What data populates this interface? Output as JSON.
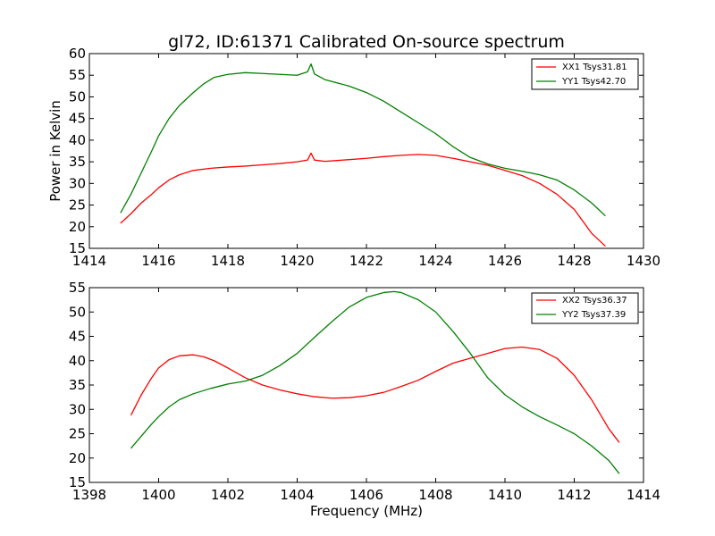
{
  "chart_data": [
    {
      "type": "line",
      "title": "gl72, ID:61371 Calibrated On-source spectrum",
      "xlabel": "",
      "ylabel": "Power in Kelvin",
      "xlim": [
        1414,
        1430
      ],
      "ylim": [
        15,
        60
      ],
      "xticks": [
        "1414",
        "1416",
        "1418",
        "1420",
        "1422",
        "1424",
        "1426",
        "1428",
        "1430"
      ],
      "yticks": [
        "15",
        "20",
        "25",
        "30",
        "35",
        "40",
        "45",
        "50",
        "55",
        "60"
      ],
      "grid": false,
      "legend_position": "top-right",
      "series": [
        {
          "name": "XX1 Tsys31.81",
          "color": "#ff0000",
          "x": [
            1414.9,
            1415.2,
            1415.5,
            1415.8,
            1416.0,
            1416.3,
            1416.6,
            1417.0,
            1417.5,
            1418.0,
            1418.5,
            1419.0,
            1419.5,
            1420.0,
            1420.3,
            1420.4,
            1420.5,
            1420.8,
            1421.5,
            1422.0,
            1422.5,
            1423.0,
            1423.5,
            1424.0,
            1424.5,
            1425.0,
            1425.5,
            1426.0,
            1426.5,
            1427.0,
            1427.5,
            1428.0,
            1428.5,
            1428.9
          ],
          "y": [
            20.8,
            23.0,
            25.5,
            27.5,
            29.0,
            30.8,
            32.0,
            33.0,
            33.5,
            33.8,
            34.0,
            34.3,
            34.6,
            35.0,
            35.4,
            37.0,
            35.4,
            35.1,
            35.5,
            35.8,
            36.2,
            36.5,
            36.7,
            36.5,
            35.8,
            35.0,
            34.2,
            33.0,
            31.8,
            30.0,
            27.5,
            24.0,
            18.5,
            15.5
          ]
        },
        {
          "name": "YY1 Tsys42.70",
          "color": "#008000",
          "x": [
            1414.9,
            1415.2,
            1415.5,
            1415.8,
            1416.0,
            1416.3,
            1416.6,
            1417.0,
            1417.3,
            1417.6,
            1418.0,
            1418.5,
            1419.0,
            1419.5,
            1420.0,
            1420.3,
            1420.4,
            1420.5,
            1420.8,
            1421.5,
            1422.0,
            1422.5,
            1423.0,
            1423.5,
            1424.0,
            1424.5,
            1425.0,
            1425.5,
            1426.0,
            1426.5,
            1427.0,
            1427.5,
            1428.0,
            1428.5,
            1428.9
          ],
          "y": [
            23.2,
            27.5,
            32.5,
            37.5,
            41.0,
            45.0,
            48.0,
            51.0,
            53.0,
            54.5,
            55.2,
            55.6,
            55.4,
            55.2,
            55.0,
            55.8,
            57.6,
            55.3,
            54.0,
            52.5,
            51.0,
            49.0,
            46.5,
            44.0,
            41.5,
            38.5,
            36.0,
            34.5,
            33.5,
            32.8,
            32.0,
            30.8,
            28.5,
            25.5,
            22.5
          ]
        }
      ]
    },
    {
      "type": "line",
      "title": "",
      "xlabel": "Frequency (MHz)",
      "ylabel": "",
      "xlim": [
        1398,
        1414
      ],
      "ylim": [
        15,
        55
      ],
      "xticks": [
        "1398",
        "1400",
        "1402",
        "1404",
        "1406",
        "1408",
        "1410",
        "1412",
        "1414"
      ],
      "yticks": [
        "15",
        "20",
        "25",
        "30",
        "35",
        "40",
        "45",
        "50",
        "55"
      ],
      "grid": false,
      "legend_position": "top-right",
      "series": [
        {
          "name": "XX2 Tsys36.37",
          "color": "#ff0000",
          "x": [
            1399.2,
            1399.5,
            1399.8,
            1400.0,
            1400.3,
            1400.6,
            1401.0,
            1401.3,
            1401.6,
            1402.0,
            1402.5,
            1403.0,
            1403.5,
            1404.0,
            1404.5,
            1405.0,
            1405.5,
            1406.0,
            1406.5,
            1407.0,
            1407.5,
            1408.0,
            1408.5,
            1409.0,
            1409.5,
            1410.0,
            1410.5,
            1411.0,
            1411.5,
            1412.0,
            1412.5,
            1413.0,
            1413.3
          ],
          "y": [
            28.8,
            33.0,
            36.5,
            38.5,
            40.2,
            41.0,
            41.2,
            40.8,
            40.0,
            38.5,
            36.5,
            35.0,
            34.0,
            33.2,
            32.6,
            32.3,
            32.4,
            32.8,
            33.5,
            34.7,
            36.0,
            37.8,
            39.5,
            40.5,
            41.5,
            42.5,
            42.8,
            42.3,
            40.5,
            37.0,
            32.0,
            26.0,
            23.2
          ]
        },
        {
          "name": "YY2 Tsys37.39",
          "color": "#008000",
          "x": [
            1399.2,
            1399.5,
            1399.8,
            1400.0,
            1400.3,
            1400.6,
            1401.0,
            1401.5,
            1402.0,
            1402.5,
            1403.0,
            1403.5,
            1404.0,
            1404.5,
            1405.0,
            1405.5,
            1406.0,
            1406.5,
            1406.8,
            1407.0,
            1407.5,
            1408.0,
            1408.5,
            1409.0,
            1409.5,
            1410.0,
            1410.5,
            1411.0,
            1411.5,
            1412.0,
            1412.5,
            1413.0,
            1413.3
          ],
          "y": [
            22.0,
            24.5,
            27.0,
            28.5,
            30.5,
            32.0,
            33.2,
            34.3,
            35.2,
            35.8,
            37.0,
            39.0,
            41.5,
            44.8,
            48.0,
            51.0,
            53.0,
            54.0,
            54.2,
            54.0,
            52.5,
            50.0,
            46.0,
            41.5,
            36.5,
            33.0,
            30.5,
            28.5,
            26.8,
            25.0,
            22.5,
            19.5,
            16.8
          ]
        }
      ]
    }
  ]
}
